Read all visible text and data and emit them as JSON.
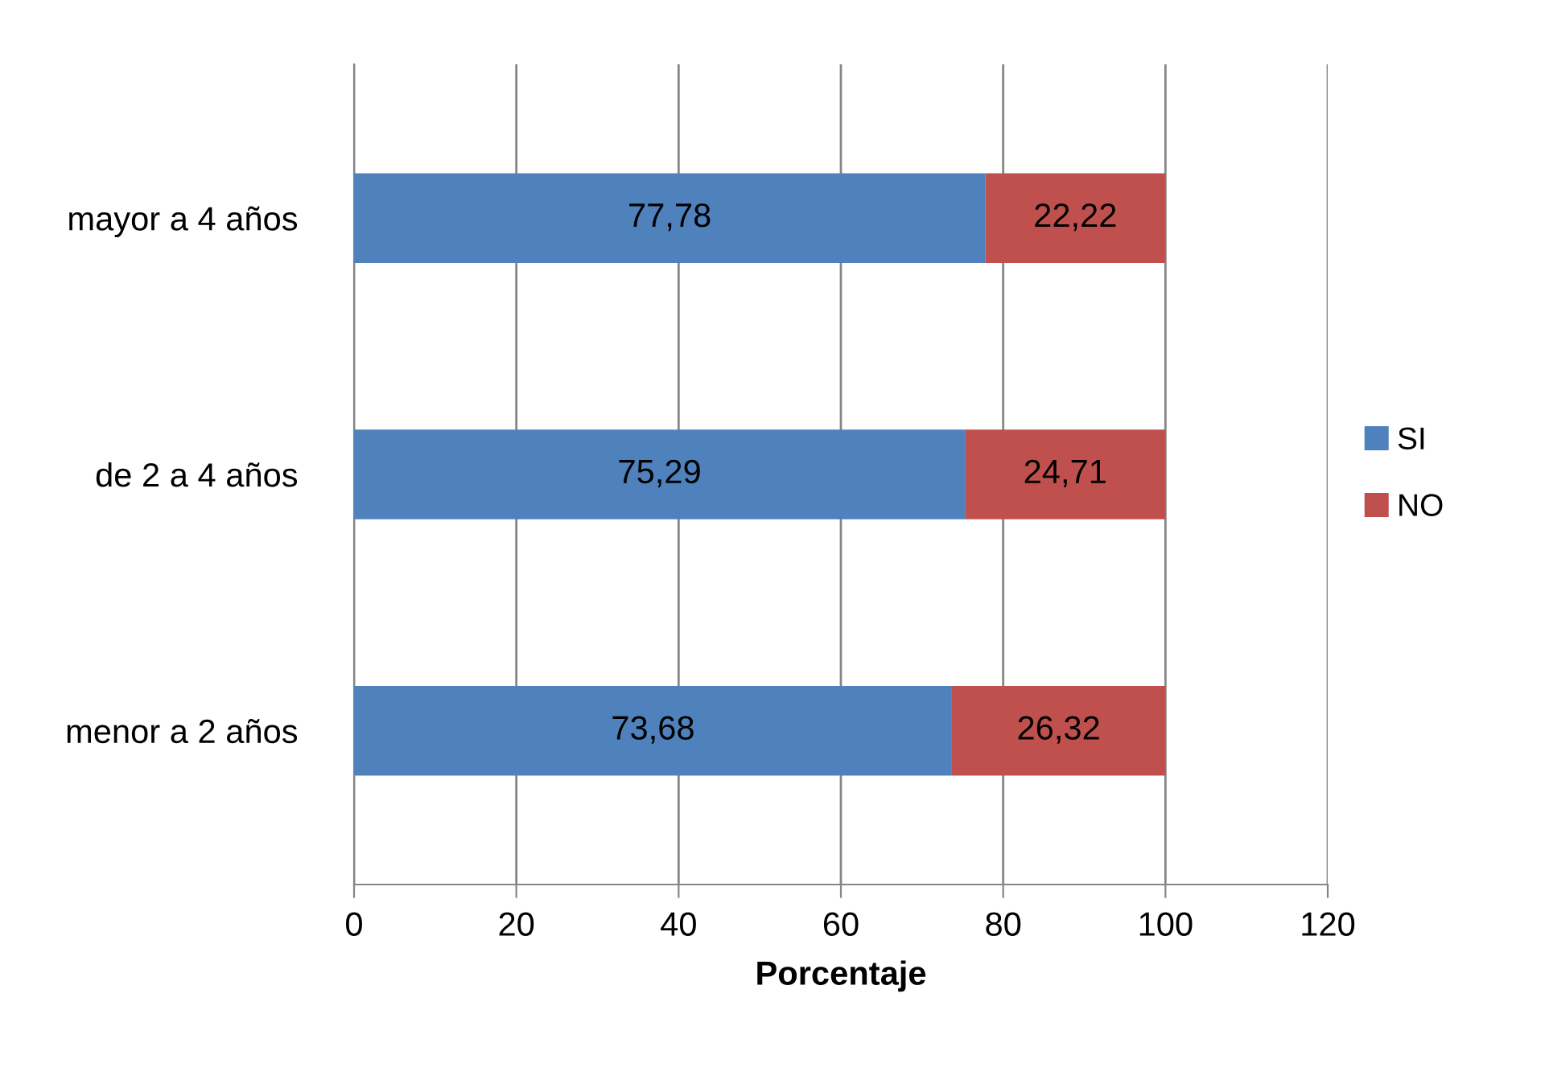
{
  "chart_data": {
    "type": "bar",
    "orientation": "horizontal",
    "stacked": true,
    "categories": [
      "mayor a 4 años",
      "de 2 a 4 años",
      "menor a 2 años"
    ],
    "series": [
      {
        "name": "SI",
        "color": "#4f81bd",
        "values": [
          77.78,
          75.29,
          73.68
        ],
        "value_labels": [
          "77,78",
          "75,29",
          "73,68"
        ]
      },
      {
        "name": "NO",
        "color": "#c0504d",
        "values": [
          22.22,
          24.71,
          26.32
        ],
        "value_labels": [
          "22,22",
          "24,71",
          "26,32"
        ]
      }
    ],
    "xlabel": "Porcentaje",
    "xlim": [
      0,
      120
    ],
    "xticks": [
      0,
      20,
      40,
      60,
      80,
      100,
      120
    ],
    "grid": "x",
    "legend": "right"
  }
}
